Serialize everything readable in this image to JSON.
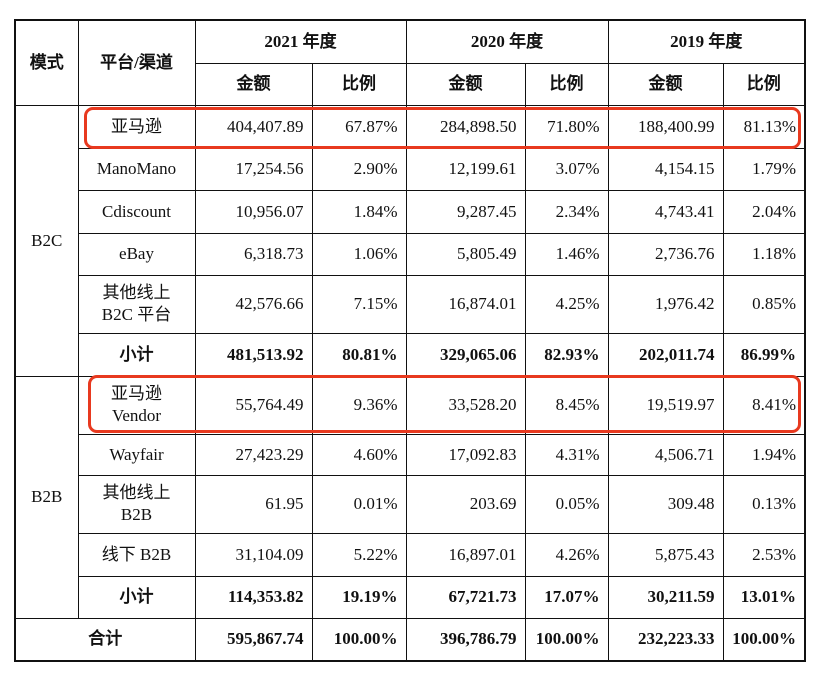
{
  "headers": {
    "mode": "模式",
    "platform": "平台/渠道",
    "years": [
      "2021 年度",
      "2020 年度",
      "2019 年度"
    ],
    "amount": "金额",
    "ratio": "比例"
  },
  "b2c": {
    "label": "B2C",
    "rows": [
      {
        "name": "亚马逊",
        "v": [
          "404,407.89",
          "67.87%",
          "284,898.50",
          "71.80%",
          "188,400.99",
          "81.13%"
        ]
      },
      {
        "name": "ManoMano",
        "v": [
          "17,254.56",
          "2.90%",
          "12,199.61",
          "3.07%",
          "4,154.15",
          "1.79%"
        ]
      },
      {
        "name": "Cdiscount",
        "v": [
          "10,956.07",
          "1.84%",
          "9,287.45",
          "2.34%",
          "4,743.41",
          "2.04%"
        ]
      },
      {
        "name": "eBay",
        "v": [
          "6,318.73",
          "1.06%",
          "5,805.49",
          "1.46%",
          "2,736.76",
          "1.18%"
        ]
      },
      {
        "name1": "其他线上",
        "name2": "B2C 平台",
        "v": [
          "42,576.66",
          "7.15%",
          "16,874.01",
          "4.25%",
          "1,976.42",
          "0.85%"
        ]
      }
    ],
    "subtotal": {
      "name": "小计",
      "v": [
        "481,513.92",
        "80.81%",
        "329,065.06",
        "82.93%",
        "202,011.74",
        "86.99%"
      ]
    }
  },
  "b2b": {
    "label": "B2B",
    "rows": [
      {
        "name1": "亚马逊",
        "name2": "Vendor",
        "v": [
          "55,764.49",
          "9.36%",
          "33,528.20",
          "8.45%",
          "19,519.97",
          "8.41%"
        ]
      },
      {
        "name": "Wayfair",
        "v": [
          "27,423.29",
          "4.60%",
          "17,092.83",
          "4.31%",
          "4,506.71",
          "1.94%"
        ]
      },
      {
        "name1": "其他线上",
        "name2": "B2B",
        "v": [
          "61.95",
          "0.01%",
          "203.69",
          "0.05%",
          "309.48",
          "0.13%"
        ]
      },
      {
        "name": "线下 B2B",
        "v": [
          "31,104.09",
          "5.22%",
          "16,897.01",
          "4.26%",
          "5,875.43",
          "2.53%"
        ]
      }
    ],
    "subtotal": {
      "name": "小计",
      "v": [
        "114,353.82",
        "19.19%",
        "67,721.73",
        "17.07%",
        "30,211.59",
        "13.01%"
      ]
    }
  },
  "total": {
    "name": "合计",
    "v": [
      "595,867.74",
      "100.00%",
      "396,786.79",
      "100.00%",
      "232,223.33",
      "100.00%"
    ]
  },
  "highlight_color": "#e8391f"
}
